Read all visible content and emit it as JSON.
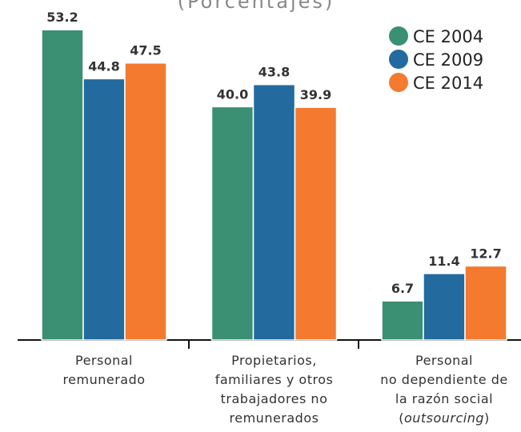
{
  "chart_data": {
    "type": "bar",
    "subtitle": "(Porcentajes)",
    "categories": [
      [
        "Personal",
        "remunerado"
      ],
      [
        "Propietarios,",
        "familiares y otros",
        "trabajadores no",
        "remunerados"
      ],
      [
        "Personal",
        "no dependiente de",
        "la razón social",
        "(outsourcing)"
      ]
    ],
    "series": [
      {
        "name": "CE 2004",
        "color": "#3b8f73",
        "values": [
          53.2,
          40.0,
          6.7
        ],
        "value_labels": [
          "53.2",
          "40.0",
          "6.7"
        ]
      },
      {
        "name": "CE 2009",
        "color": "#236a9e",
        "values": [
          44.8,
          43.8,
          11.4
        ],
        "value_labels": [
          "44.8",
          "43.8",
          "11.4"
        ]
      },
      {
        "name": "CE 2014",
        "color": "#f47a30",
        "values": [
          47.5,
          39.9,
          12.7
        ],
        "value_labels": [
          "47.5",
          "39.9",
          "12.7"
        ]
      }
    ],
    "legend": "upper right"
  }
}
